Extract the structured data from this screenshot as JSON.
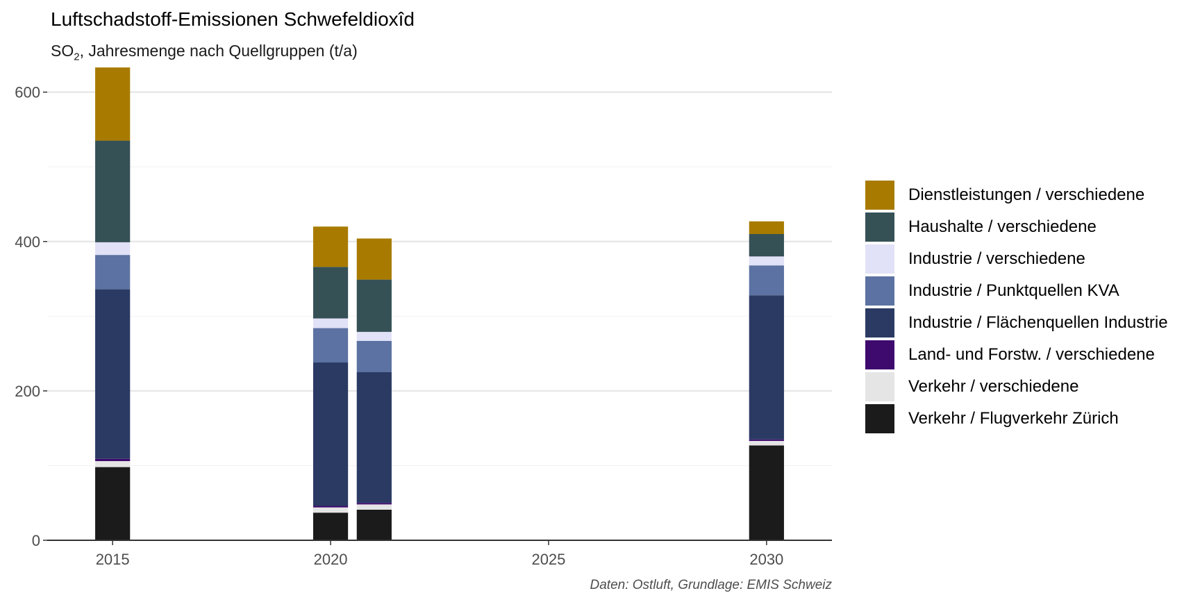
{
  "header": {
    "title": "Luftschadstoff-Emissionen Schwefeldioxîd",
    "subtitle_prefix": "SO",
    "subtitle_sub": "2",
    "subtitle_rest": ", Jahresmenge nach Quellgruppen (t/a)"
  },
  "caption": "Daten: Ostluft, Grundlage: EMIS Schweiz",
  "chart_data": {
    "type": "bar",
    "stacked": true,
    "title": "Luftschadstoff-Emissionen Schwefeldioxîd",
    "subtitle": "SO2, Jahresmenge nach Quellgruppen (t/a)",
    "xlabel": "",
    "ylabel": "",
    "xlim": [
      2013.5,
      2031.5
    ],
    "ylim": [
      0,
      635
    ],
    "x_ticks": [
      2015,
      2020,
      2025,
      2030
    ],
    "y_ticks": [
      0,
      200,
      400,
      600
    ],
    "grid": true,
    "legend_position": "right",
    "x": [
      2015,
      2020,
      2021,
      2030
    ],
    "series": [
      {
        "name": "Verkehr / Flugverkehr Zürich",
        "color": "#1b1b1b",
        "values": [
          98,
          37,
          41,
          127
        ]
      },
      {
        "name": "Verkehr / verschiedene",
        "color": "#e5e5e5",
        "values": [
          8,
          7,
          7,
          6
        ]
      },
      {
        "name": "Land- und Forstw. / verschiedene",
        "color": "#3f0a6e",
        "values": [
          3,
          2,
          2,
          2
        ]
      },
      {
        "name": "Industrie / Flächenquellen Industrie",
        "color": "#2b3a63",
        "values": [
          227,
          192,
          175,
          193
        ]
      },
      {
        "name": "Industrie / Punktquellen KVA",
        "color": "#5b72a2",
        "values": [
          46,
          46,
          42,
          40
        ]
      },
      {
        "name": "Industrie / verschiedene",
        "color": "#e1e1f7",
        "values": [
          17,
          13,
          12,
          12
        ]
      },
      {
        "name": "Haushalte / verschiedene",
        "color": "#355156",
        "values": [
          136,
          69,
          70,
          30
        ]
      },
      {
        "name": "Dienstleistungen / verschiedene",
        "color": "#a87b00",
        "values": [
          98,
          54,
          55,
          17
        ]
      }
    ]
  }
}
